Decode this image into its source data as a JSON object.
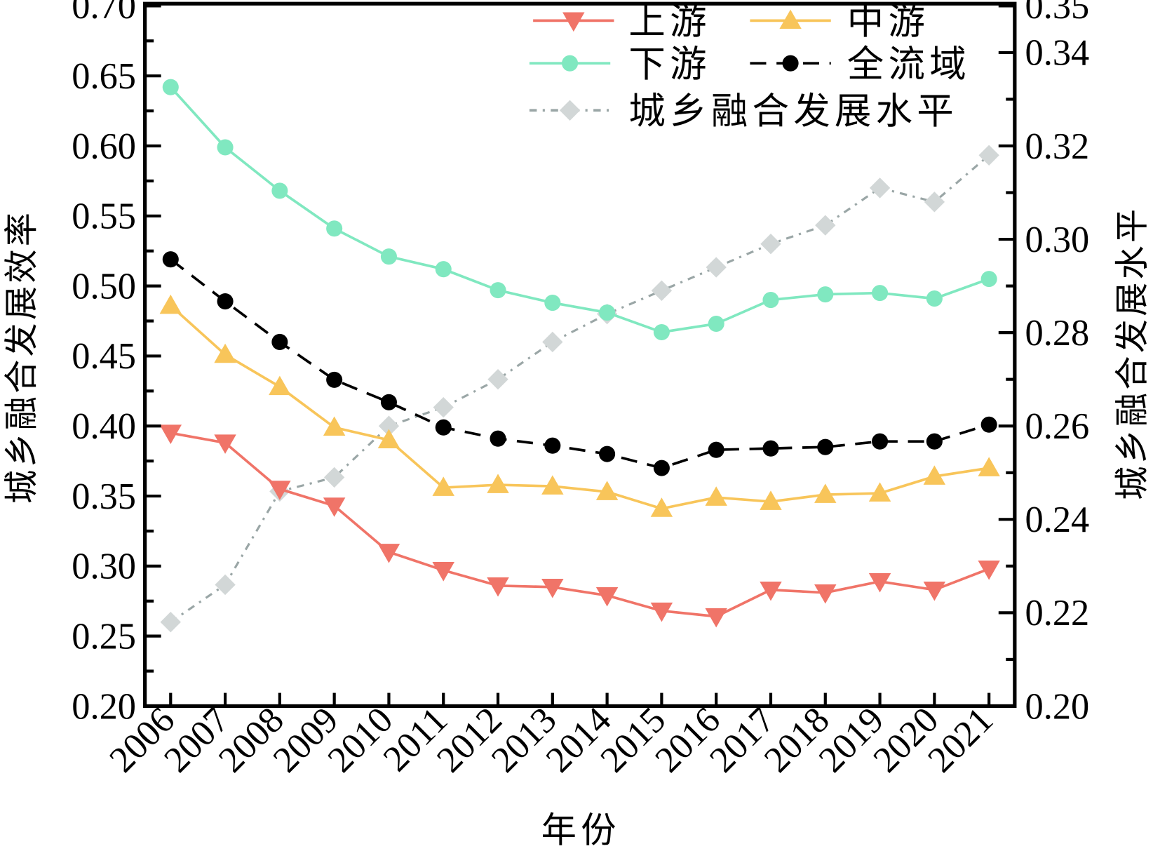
{
  "chart_data": {
    "type": "line",
    "x": [
      2006,
      2007,
      2008,
      2009,
      2010,
      2011,
      2012,
      2013,
      2014,
      2015,
      2016,
      2017,
      2018,
      2019,
      2020,
      2021
    ],
    "xlabel": "年份",
    "ylabel": "城乡融合发展效率",
    "y2label": "城乡融合发展水平",
    "ylim": [
      0.2,
      0.7
    ],
    "y2lim": [
      0.2,
      0.35
    ],
    "yticks": [
      "0.20",
      "0.25",
      "0.30",
      "0.35",
      "0.40",
      "0.45",
      "0.50",
      "0.55",
      "0.60",
      "0.65",
      "0.70"
    ],
    "y2ticks": [
      "0.20",
      "0.22",
      "0.24",
      "0.26",
      "0.28",
      "0.30",
      "0.32",
      "0.34",
      "0.35"
    ],
    "legend_position": "top-right",
    "grid": false,
    "series": [
      {
        "name": "上游",
        "axis": "left",
        "color": "#f07468",
        "marker": "triangle-down",
        "dash": "solid",
        "values": [
          0.395,
          0.388,
          0.355,
          0.343,
          0.31,
          0.297,
          0.286,
          0.285,
          0.279,
          0.268,
          0.264,
          0.283,
          0.281,
          0.289,
          0.283,
          0.298
        ]
      },
      {
        "name": "中游",
        "axis": "left",
        "color": "#f8c55a",
        "marker": "triangle-up",
        "dash": "solid",
        "values": [
          0.486,
          0.451,
          0.428,
          0.399,
          0.39,
          0.356,
          0.358,
          0.357,
          0.353,
          0.341,
          0.349,
          0.346,
          0.351,
          0.352,
          0.364,
          0.37
        ]
      },
      {
        "name": "下游",
        "axis": "left",
        "color": "#80e8c0",
        "marker": "circle",
        "dash": "solid",
        "values": [
          0.642,
          0.599,
          0.568,
          0.541,
          0.521,
          0.512,
          0.497,
          0.488,
          0.481,
          0.467,
          0.473,
          0.49,
          0.494,
          0.495,
          0.491,
          0.505
        ]
      },
      {
        "name": "全流域",
        "axis": "left",
        "color": "#000000",
        "marker": "circle",
        "dash": "dash",
        "values": [
          0.519,
          0.489,
          0.46,
          0.433,
          0.417,
          0.399,
          0.391,
          0.386,
          0.38,
          0.37,
          0.383,
          0.384,
          0.385,
          0.389,
          0.389,
          0.401
        ]
      },
      {
        "name": "城乡融合发展水平",
        "axis": "right",
        "color": "#9aa6a6",
        "marker_color": "#d2d7d7",
        "marker": "diamond",
        "dash": "dashdot",
        "values": [
          0.218,
          0.226,
          0.246,
          0.249,
          0.26,
          0.264,
          0.27,
          0.278,
          0.284,
          0.289,
          0.294,
          0.299,
          0.303,
          0.311,
          0.308,
          0.318
        ]
      }
    ]
  }
}
